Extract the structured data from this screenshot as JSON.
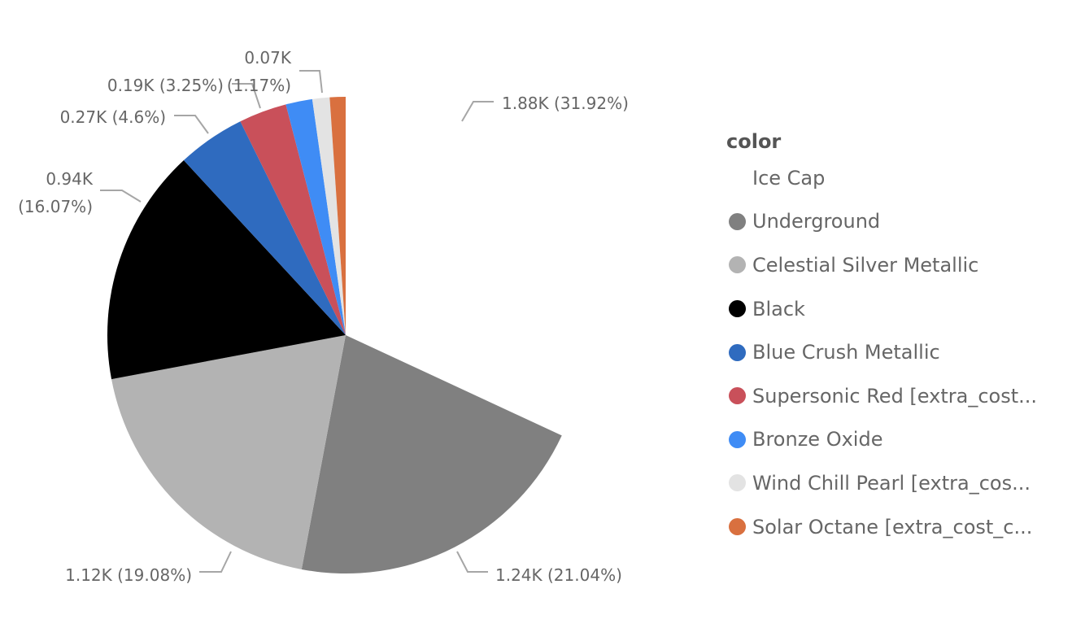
{
  "chart_data": {
    "type": "pie",
    "title": "",
    "legend_title": "color",
    "legend_position": "right",
    "start_angle_deg": 0,
    "direction": "clockwise",
    "slices": [
      {
        "name": "Ice Cap",
        "value_label": "1.88K",
        "value": 1880,
        "percent": 31.92,
        "color": "#ffffff",
        "label": "1.88K (31.92%)"
      },
      {
        "name": "Underground",
        "value_label": "1.24K",
        "value": 1240,
        "percent": 21.04,
        "color": "#808080",
        "label": "1.24K (21.04%)"
      },
      {
        "name": "Celestial Silver Metallic",
        "value_label": "1.12K",
        "value": 1120,
        "percent": 19.08,
        "color": "#b3b3b3",
        "label": "1.12K (19.08%)"
      },
      {
        "name": "Black",
        "value_label": "0.94K",
        "value": 940,
        "percent": 16.07,
        "color": "#000000",
        "label": "0.94K (16.07%)"
      },
      {
        "name": "Blue Crush Metallic",
        "value_label": "0.27K",
        "value": 270,
        "percent": 4.6,
        "color": "#2f6bbf",
        "label": "0.27K (4.6%)"
      },
      {
        "name": "Supersonic Red [extra_cost...",
        "value_label": "0.19K",
        "value": 190,
        "percent": 3.25,
        "color": "#c9505a",
        "label": "0.19K (3.25%)"
      },
      {
        "name": "Bronze Oxide",
        "value_label": "",
        "value": 105,
        "percent": 1.8,
        "color": "#3f8cf5",
        "label": ""
      },
      {
        "name": "Wind Chill Pearl [extra_cos...",
        "value_label": "0.07K",
        "value": 70,
        "percent": 1.17,
        "color": "#e3e3e3",
        "label": "0.07K (1.17%)"
      },
      {
        "name": "Solar Octane [extra_cost_c...",
        "value_label": "",
        "value": 63,
        "percent": 1.07,
        "color": "#d9703f",
        "label": ""
      }
    ]
  },
  "labels": {
    "ice_cap": "1.88K (31.92%)",
    "underground": "1.24K (21.04%)",
    "celestial": "1.12K (19.08%)",
    "black_line1": "0.94K",
    "black_line2": "(16.07%)",
    "blue_crush": "0.27K (4.6%)",
    "supersonic": "0.19K (3.25%)",
    "wind_line1": "0.07K",
    "wind_line2": "(1.17%)"
  },
  "legend": {
    "title": "color",
    "items": [
      {
        "label": "Ice Cap",
        "color": "#ffffff"
      },
      {
        "label": "Underground",
        "color": "#808080"
      },
      {
        "label": "Celestial Silver Metallic",
        "color": "#b3b3b3"
      },
      {
        "label": "Black",
        "color": "#000000"
      },
      {
        "label": "Blue Crush Metallic",
        "color": "#2f6bbf"
      },
      {
        "label": "Supersonic Red [extra_cost...",
        "color": "#c9505a"
      },
      {
        "label": "Bronze Oxide",
        "color": "#3f8cf5"
      },
      {
        "label": "Wind Chill Pearl [extra_cos...",
        "color": "#e3e3e3"
      },
      {
        "label": "Solar Octane [extra_cost_c...",
        "color": "#d9703f"
      }
    ]
  }
}
